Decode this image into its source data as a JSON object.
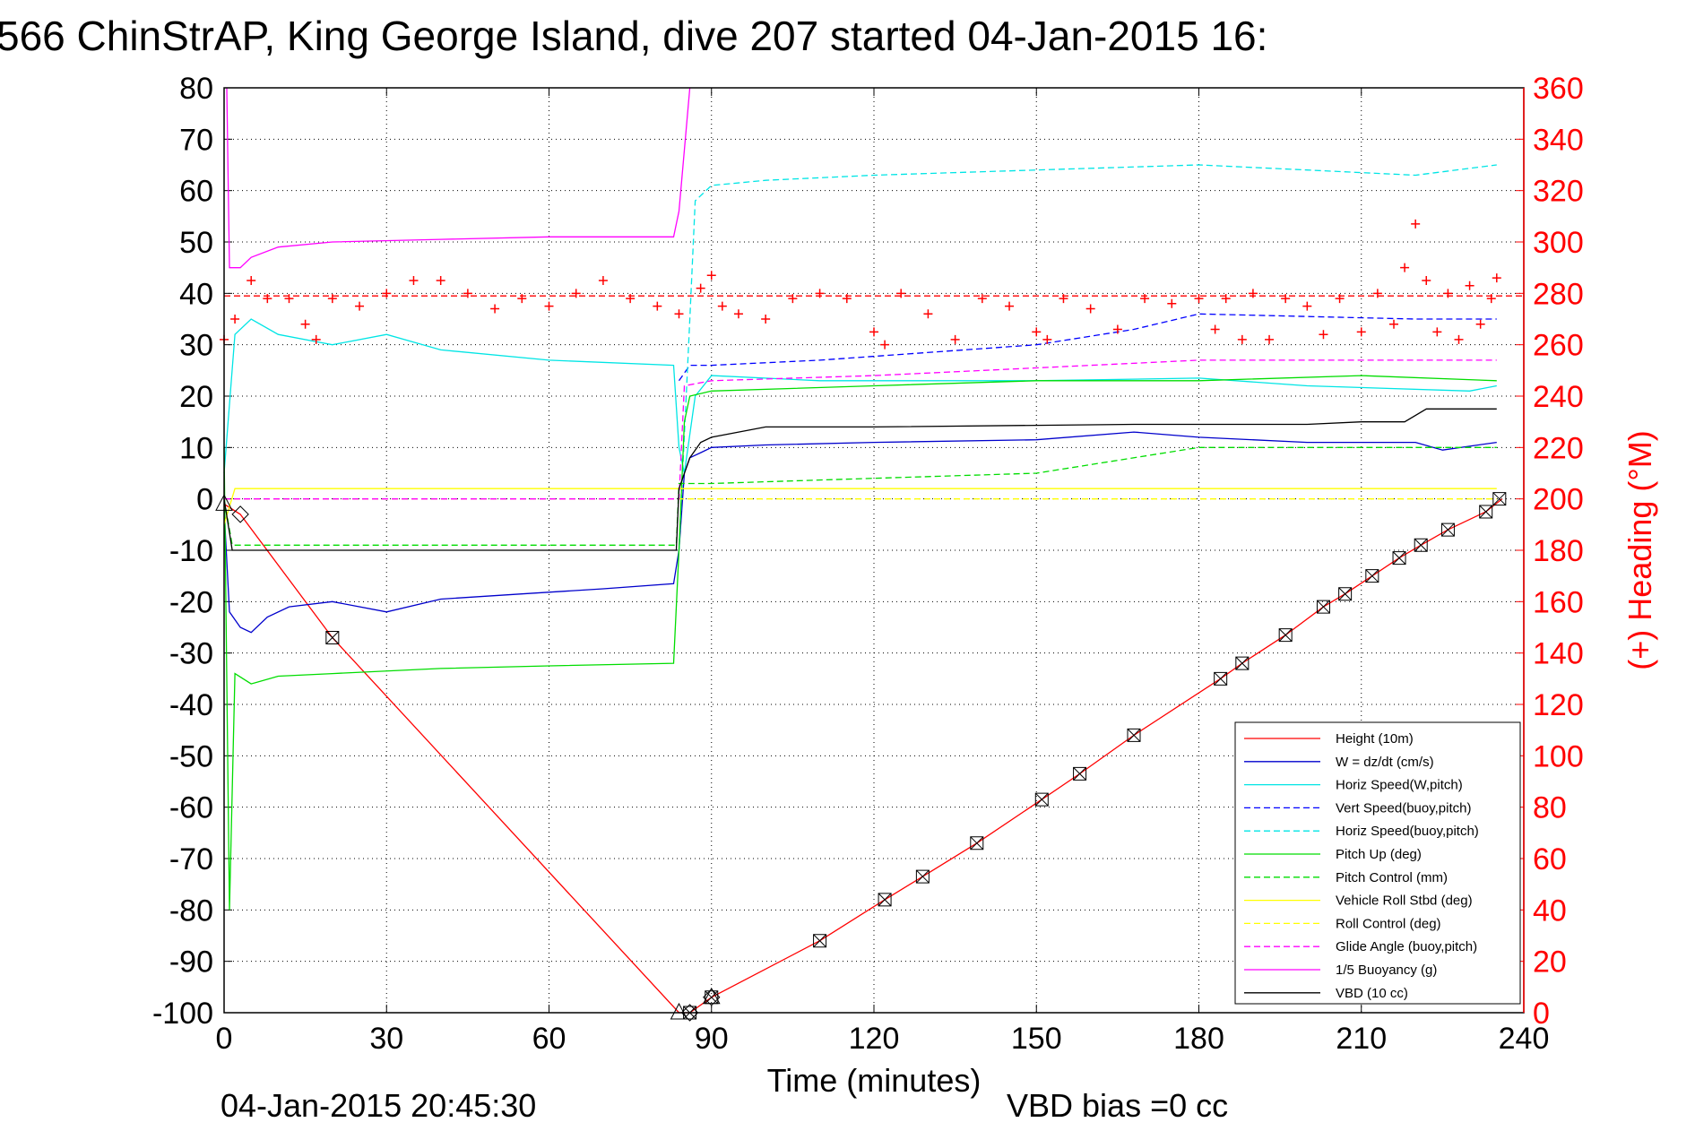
{
  "footer": {
    "timestamp": "04-Jan-2015 20:45:30",
    "vbd_bias": "VBD bias =0 cc"
  },
  "chart_data": {
    "type": "line",
    "title": "566 ChinStrAP, King George Island, dive 207 started 04-Jan-2015 16:",
    "xlabel": "Time (minutes)",
    "ylabel": "",
    "ylabel_right": "(+) Heading (°M)",
    "xlim": [
      0,
      240
    ],
    "ylim": [
      -100,
      80
    ],
    "ylim_right": [
      0,
      360
    ],
    "xticks": [
      0,
      30,
      60,
      90,
      120,
      150,
      180,
      210,
      240
    ],
    "yticks": [
      80,
      70,
      60,
      50,
      40,
      30,
      20,
      10,
      0,
      -10,
      -20,
      -30,
      -40,
      -50,
      -60,
      -70,
      -80,
      -90,
      -100
    ],
    "yticks_right": [
      360,
      340,
      320,
      300,
      280,
      260,
      240,
      220,
      200,
      180,
      160,
      140,
      120,
      100,
      80,
      60,
      40,
      20,
      0
    ],
    "grid": true,
    "legend_position": "bottom-right",
    "colors": {
      "axis": "#000000",
      "right_axis": "#ff0000",
      "grid": "#000000"
    },
    "series": [
      {
        "name": "Height (10m)",
        "color": "#ff0000",
        "dash": "solid",
        "x": [
          0,
          3,
          20,
          84,
          86,
          90,
          110,
          122,
          129,
          139,
          151,
          158,
          168,
          184,
          188,
          196,
          203,
          207,
          212,
          217,
          221,
          226,
          233,
          236
        ],
        "y": [
          -1,
          -3,
          -27,
          -100,
          -100,
          -97,
          -86,
          -78,
          -73.5,
          -67,
          -58.5,
          -53.5,
          -46,
          -35,
          -32,
          -26.5,
          -21,
          -18.5,
          -15,
          -11.5,
          -9,
          -6,
          -2.5,
          0
        ]
      },
      {
        "name": "W = dz/dt (cm/s)",
        "color": "#0000cc",
        "dash": "solid",
        "x": [
          0,
          1,
          3,
          5,
          8,
          12,
          20,
          30,
          40,
          55,
          70,
          83,
          84,
          85,
          86,
          88,
          90,
          100,
          120,
          150,
          168,
          180,
          200,
          220,
          225,
          235
        ],
        "y": [
          -2,
          -22,
          -25,
          -26,
          -23,
          -21,
          -20,
          -22,
          -19.5,
          -18.5,
          -17.5,
          -16.5,
          -10,
          5,
          8,
          9,
          10,
          10.5,
          11,
          11.5,
          13,
          12,
          11,
          11,
          9.5,
          11
        ]
      },
      {
        "name": "Horiz Speed(W,pitch)",
        "color": "#00e5e5",
        "dash": "solid",
        "x": [
          0,
          2,
          5,
          10,
          20,
          30,
          40,
          60,
          83,
          84,
          85,
          87,
          90,
          110,
          150,
          180,
          200,
          230,
          235
        ],
        "y": [
          5,
          32,
          35,
          32,
          30,
          32,
          29,
          27,
          26,
          10,
          5,
          20,
          24,
          23,
          23,
          23.5,
          22,
          21,
          22
        ]
      },
      {
        "name": "Vert Speed(buoy,pitch)",
        "color": "#0000ff",
        "dash": "dashed",
        "x": [
          84,
          86,
          90,
          110,
          150,
          168,
          180,
          220,
          235
        ],
        "y": [
          23,
          26,
          26,
          27,
          30,
          33,
          36,
          35,
          35
        ]
      },
      {
        "name": "Horiz Speed(buoy,pitch)",
        "color": "#00e5e5",
        "dash": "dashed",
        "x": [
          84,
          86,
          87,
          90,
          100,
          120,
          150,
          180,
          200,
          220,
          235
        ],
        "y": [
          -10,
          35,
          58,
          61,
          62,
          63,
          64,
          65,
          64,
          63,
          65
        ]
      },
      {
        "name": "Pitch Up (deg)",
        "color": "#00dd00",
        "dash": "solid",
        "x": [
          0,
          1,
          2,
          5,
          10,
          20,
          40,
          60,
          83,
          84,
          85,
          86,
          90,
          120,
          150,
          180,
          210,
          235
        ],
        "y": [
          10,
          -80,
          -34,
          -36,
          -34.5,
          -34,
          -33,
          -32.5,
          -32,
          -10,
          15,
          20,
          21,
          22,
          23,
          23,
          24,
          23
        ]
      },
      {
        "name": "Pitch Control (mm)",
        "color": "#00dd00",
        "dash": "dashed",
        "x": [
          0,
          1.5,
          83.5,
          84,
          90,
          120,
          150,
          180,
          235
        ],
        "y": [
          0,
          -9,
          -9,
          3,
          3,
          4,
          5,
          10,
          10
        ]
      },
      {
        "name": "Vehicle Roll Stbd (deg)",
        "color": "#ffff00",
        "dash": "solid",
        "x": [
          0,
          2,
          20,
          60,
          84,
          90,
          120,
          150,
          180,
          235
        ],
        "y": [
          -5,
          2,
          2,
          2,
          2,
          2,
          2,
          2,
          2,
          2
        ]
      },
      {
        "name": "Roll Control (deg)",
        "color": "#ffff00",
        "dash": "dashed",
        "x": [
          0,
          235
        ],
        "y": [
          0,
          0
        ]
      },
      {
        "name": "Glide Angle (buoy,pitch)",
        "color": "#ff00ff",
        "dash": "dashed",
        "x": [
          0,
          84,
          85,
          90,
          120,
          150,
          180,
          200,
          235
        ],
        "y": [
          0,
          0,
          22,
          23,
          24,
          25.5,
          27,
          27,
          27
        ]
      },
      {
        "name": "1/5 Buoyancy (g)",
        "color": "#ff00ff",
        "dash": "solid",
        "x": [
          0.5,
          1,
          3,
          5,
          10,
          20,
          40,
          60,
          83,
          84,
          86
        ],
        "y": [
          80,
          45,
          45,
          47,
          49,
          50,
          50.5,
          51,
          51,
          56,
          80
        ]
      },
      {
        "name": "VBD (10 cc)",
        "color": "#000000",
        "dash": "solid",
        "x": [
          0,
          1.5,
          83.5,
          84,
          86,
          88,
          90,
          95,
          100,
          120,
          168,
          200,
          210,
          218,
          222,
          235
        ],
        "y": [
          0,
          -10,
          -10,
          2,
          8,
          11,
          12,
          13,
          14,
          14,
          14.5,
          14.5,
          15,
          15,
          17.5,
          17.5
        ]
      }
    ],
    "heading_series": {
      "name": "(+) Heading (°M)",
      "color": "#ff0000",
      "marker": "+",
      "axis": "right",
      "mean": 279,
      "x": [
        0,
        2,
        5,
        8,
        12,
        15,
        17,
        20,
        25,
        30,
        35,
        40,
        45,
        50,
        55,
        60,
        65,
        70,
        75,
        80,
        84,
        88,
        90,
        92,
        95,
        100,
        105,
        110,
        115,
        120,
        122,
        125,
        130,
        135,
        140,
        145,
        150,
        152,
        155,
        160,
        165,
        170,
        175,
        180,
        183,
        185,
        188,
        190,
        193,
        196,
        200,
        203,
        206,
        210,
        213,
        216,
        218,
        220,
        222,
        224,
        226,
        228,
        230,
        232,
        234,
        235
      ],
      "y": [
        262,
        270,
        285,
        278,
        278,
        268,
        262,
        278,
        275,
        280,
        285,
        285,
        280,
        274,
        278,
        275,
        280,
        285,
        278,
        275,
        272,
        282,
        287,
        275,
        272,
        270,
        278,
        280,
        278,
        265,
        260,
        280,
        272,
        262,
        278,
        275,
        265,
        262,
        278,
        274,
        266,
        278,
        276,
        278,
        266,
        278,
        262,
        280,
        262,
        278,
        275,
        264,
        278,
        265,
        280,
        268,
        290,
        307,
        285,
        265,
        280,
        262,
        283,
        268,
        278,
        286
      ]
    },
    "markers": {
      "triangle": {
        "x": [
          0,
          84,
          90
        ],
        "y": [
          -1,
          -100,
          -97
        ]
      },
      "diamond": {
        "x": [
          3,
          86,
          90
        ],
        "y": [
          -3,
          -100,
          -97
        ]
      },
      "boxx": {
        "x": [
          20,
          86,
          90,
          110,
          122,
          129,
          139,
          151,
          158,
          168,
          184,
          188,
          196,
          203,
          207,
          212,
          217,
          221,
          226,
          233,
          235.5
        ],
        "y": [
          -27,
          -100,
          -97,
          -86,
          -78,
          -73.5,
          -67,
          -58.5,
          -53.5,
          -46,
          -35,
          -32,
          -26.5,
          -21,
          -18.5,
          -15,
          -11.5,
          -9,
          -6,
          -2.5,
          0
        ]
      }
    }
  }
}
